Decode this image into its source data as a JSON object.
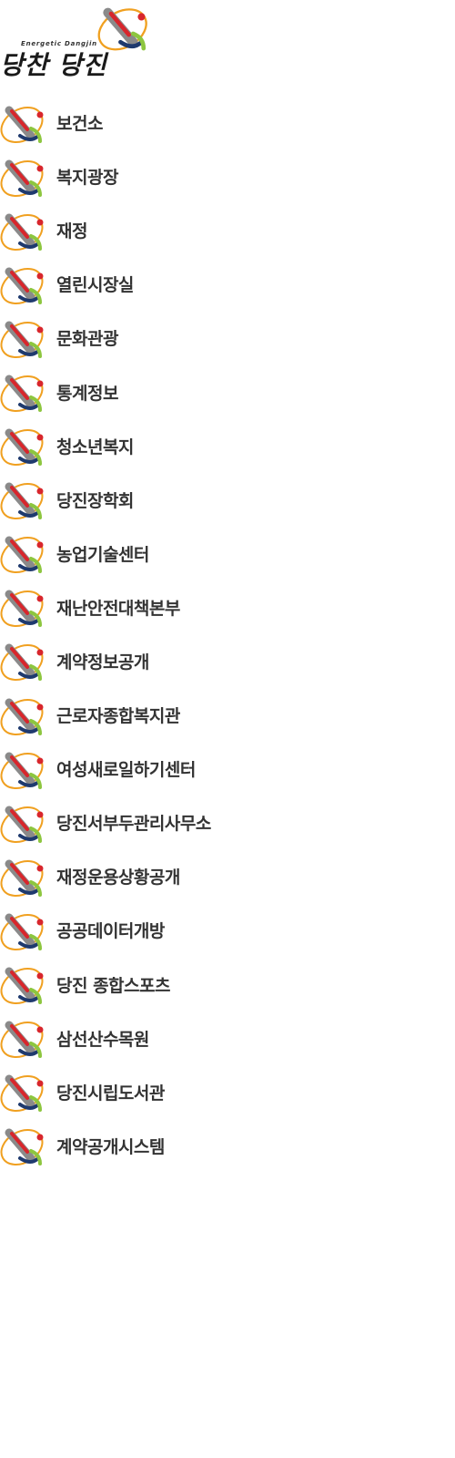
{
  "header": {
    "slogan_en": "Energetic Dangjin",
    "slogan_ko": "당찬 당진",
    "emblem_icon": "dangjin-emblem-icon"
  },
  "menu": {
    "item_icon": "dangjin-emblem-icon",
    "items": [
      {
        "label": "보건소"
      },
      {
        "label": "복지광장"
      },
      {
        "label": "재정"
      },
      {
        "label": "열린시장실"
      },
      {
        "label": "문화관광"
      },
      {
        "label": "통계정보"
      },
      {
        "label": "청소년복지"
      },
      {
        "label": "당진장학회"
      },
      {
        "label": "농업기술센터"
      },
      {
        "label": "재난안전대책본부"
      },
      {
        "label": "계약정보공개"
      },
      {
        "label": "근로자종합복지관"
      },
      {
        "label": "여성새로일하기센터"
      },
      {
        "label": "당진서부두관리사무소"
      },
      {
        "label": "재정운용상황공개"
      },
      {
        "label": "공공데이터개방"
      },
      {
        "label": "당진 종합스포츠"
      },
      {
        "label": "삼선산수목원"
      },
      {
        "label": "당진시립도서관"
      },
      {
        "label": "계약공개시스템"
      }
    ]
  },
  "colors": {
    "text": "#333333",
    "emblem_red": "#d8262c",
    "emblem_orange": "#f0a020",
    "emblem_green": "#8dc63f",
    "emblem_navy": "#1f3a6e",
    "emblem_gray": "#8a8a8a"
  }
}
